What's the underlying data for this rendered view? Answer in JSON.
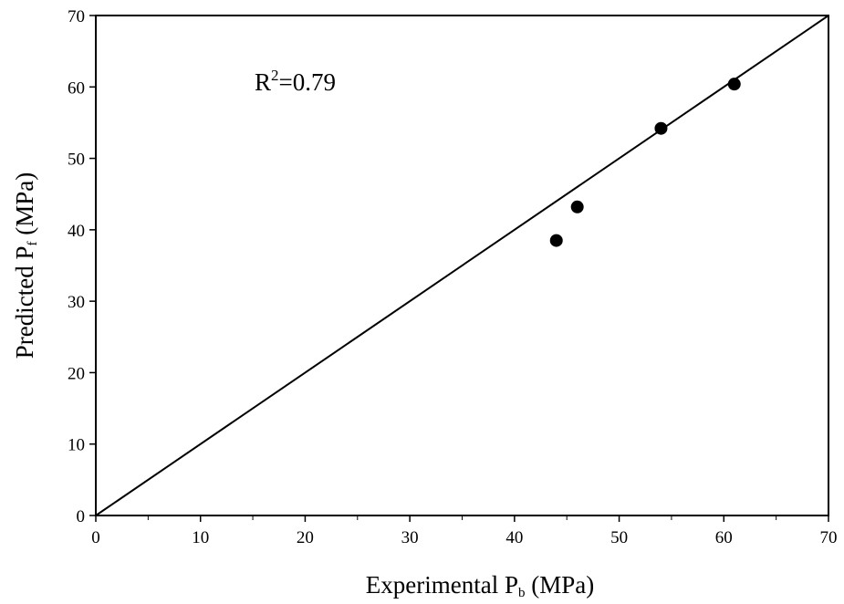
{
  "chart_data": {
    "type": "scatter",
    "xlabel_main": "Experimental P",
    "xlabel_sub": "b",
    "xlabel_unit": " (MPa)",
    "ylabel_main": "Predicted P",
    "ylabel_sub": "f",
    "ylabel_unit": " (MPa)",
    "xlim": [
      0,
      70
    ],
    "ylim": [
      0,
      70
    ],
    "xticks": [
      "0",
      "10",
      "20",
      "30",
      "40",
      "50",
      "60",
      "70"
    ],
    "yticks": [
      "0",
      "10",
      "20",
      "30",
      "40",
      "50",
      "60",
      "70"
    ],
    "annotation": {
      "base": "R",
      "sup": "2",
      "rest": "=0.79"
    },
    "reference_line": {
      "from": [
        0,
        0
      ],
      "to": [
        70,
        70
      ]
    },
    "series": [
      {
        "points": [
          {
            "x": 44.0,
            "y": 38.5
          },
          {
            "x": 46.0,
            "y": 43.2
          },
          {
            "x": 54.0,
            "y": 54.2
          },
          {
            "x": 61.0,
            "y": 60.4
          }
        ]
      }
    ]
  }
}
